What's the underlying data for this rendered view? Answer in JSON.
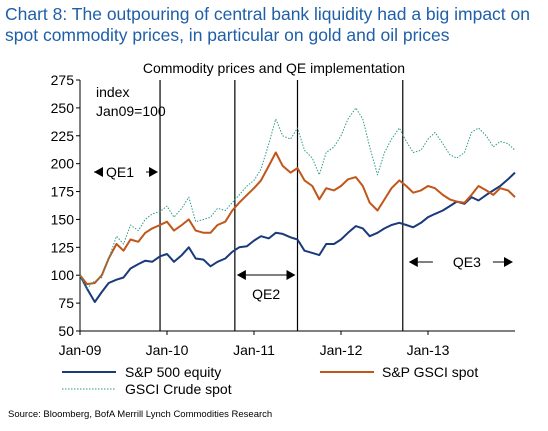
{
  "headline_line1": "Chart 8: The outpouring of central bank liquidity had a big impact on",
  "headline_line2": "spot commodity prices, in particular on gold and oil prices",
  "source": "Source: Bloomberg, BofA Merrill Lynch Commodities Research",
  "colors": {
    "headline": "#1f5fa8",
    "sp500": "#1b3a7a",
    "gsci": "#c0561a",
    "crude": "#2f9a8a"
  },
  "chart_data": {
    "type": "line",
    "title": "Commodity prices and QE implementation",
    "ylabel_line1": "index",
    "ylabel_line2": "Jan09=100",
    "ylim": [
      50,
      275
    ],
    "yticks": [
      50,
      75,
      100,
      125,
      150,
      175,
      200,
      225,
      250,
      275
    ],
    "xlim": [
      2009.0,
      2014.0
    ],
    "xticks": [
      {
        "label": "Jan-09",
        "x": 2009.0
      },
      {
        "label": "Jan-10",
        "x": 2010.0
      },
      {
        "label": "Jan-11",
        "x": 2011.0
      },
      {
        "label": "Jan-12",
        "x": 2012.0
      },
      {
        "label": "Jan-13",
        "x": 2013.0
      }
    ],
    "grid": false,
    "legend": "bottom",
    "qe_lines": [
      2009.92,
      2010.78,
      2011.5,
      2012.71
    ],
    "qe_annotations": [
      {
        "label": "QE1",
        "from": 2009.0,
        "to": 2009.92
      },
      {
        "label": "QE2",
        "from": 2010.78,
        "to": 2011.5
      },
      {
        "label": "QE3",
        "from": 2012.71,
        "to": 2014.0
      }
    ],
    "series": [
      {
        "name": "S&P 500 equity",
        "key": "sp500",
        "points": [
          [
            2009.0,
            100
          ],
          [
            2009.08,
            88
          ],
          [
            2009.17,
            76
          ],
          [
            2009.25,
            85
          ],
          [
            2009.33,
            93
          ],
          [
            2009.42,
            96
          ],
          [
            2009.5,
            98
          ],
          [
            2009.58,
            106
          ],
          [
            2009.67,
            110
          ],
          [
            2009.75,
            113
          ],
          [
            2009.83,
            112
          ],
          [
            2009.92,
            117
          ],
          [
            2010.0,
            119
          ],
          [
            2010.08,
            112
          ],
          [
            2010.17,
            118
          ],
          [
            2010.25,
            125
          ],
          [
            2010.33,
            115
          ],
          [
            2010.42,
            114
          ],
          [
            2010.5,
            108
          ],
          [
            2010.58,
            112
          ],
          [
            2010.67,
            115
          ],
          [
            2010.75,
            121
          ],
          [
            2010.83,
            125
          ],
          [
            2010.92,
            126
          ],
          [
            2011.0,
            131
          ],
          [
            2011.08,
            135
          ],
          [
            2011.17,
            133
          ],
          [
            2011.25,
            138
          ],
          [
            2011.33,
            137
          ],
          [
            2011.42,
            134
          ],
          [
            2011.5,
            132
          ],
          [
            2011.58,
            122
          ],
          [
            2011.67,
            120
          ],
          [
            2011.75,
            118
          ],
          [
            2011.83,
            128
          ],
          [
            2011.92,
            128
          ],
          [
            2012.0,
            132
          ],
          [
            2012.08,
            138
          ],
          [
            2012.17,
            144
          ],
          [
            2012.25,
            142
          ],
          [
            2012.33,
            135
          ],
          [
            2012.42,
            138
          ],
          [
            2012.5,
            142
          ],
          [
            2012.58,
            145
          ],
          [
            2012.67,
            147
          ],
          [
            2012.75,
            145
          ],
          [
            2012.83,
            143
          ],
          [
            2012.92,
            147
          ],
          [
            2013.0,
            152
          ],
          [
            2013.08,
            155
          ],
          [
            2013.17,
            158
          ],
          [
            2013.25,
            162
          ],
          [
            2013.33,
            166
          ],
          [
            2013.42,
            164
          ],
          [
            2013.5,
            170
          ],
          [
            2013.58,
            167
          ],
          [
            2013.67,
            172
          ],
          [
            2013.75,
            176
          ],
          [
            2013.83,
            180
          ],
          [
            2013.92,
            186
          ],
          [
            2014.0,
            192
          ]
        ]
      },
      {
        "name": "S&P GSCI spot",
        "key": "gsci",
        "points": [
          [
            2009.0,
            100
          ],
          [
            2009.08,
            92
          ],
          [
            2009.17,
            93
          ],
          [
            2009.25,
            100
          ],
          [
            2009.33,
            115
          ],
          [
            2009.42,
            128
          ],
          [
            2009.5,
            122
          ],
          [
            2009.58,
            132
          ],
          [
            2009.67,
            130
          ],
          [
            2009.75,
            138
          ],
          [
            2009.83,
            142
          ],
          [
            2009.92,
            145
          ],
          [
            2010.0,
            148
          ],
          [
            2010.08,
            140
          ],
          [
            2010.17,
            145
          ],
          [
            2010.25,
            150
          ],
          [
            2010.33,
            140
          ],
          [
            2010.42,
            138
          ],
          [
            2010.5,
            138
          ],
          [
            2010.58,
            145
          ],
          [
            2010.67,
            148
          ],
          [
            2010.75,
            158
          ],
          [
            2010.83,
            165
          ],
          [
            2010.92,
            172
          ],
          [
            2011.0,
            178
          ],
          [
            2011.08,
            185
          ],
          [
            2011.17,
            198
          ],
          [
            2011.25,
            210
          ],
          [
            2011.33,
            198
          ],
          [
            2011.42,
            192
          ],
          [
            2011.5,
            196
          ],
          [
            2011.58,
            185
          ],
          [
            2011.67,
            180
          ],
          [
            2011.75,
            168
          ],
          [
            2011.83,
            178
          ],
          [
            2011.92,
            176
          ],
          [
            2012.0,
            180
          ],
          [
            2012.08,
            186
          ],
          [
            2012.17,
            188
          ],
          [
            2012.25,
            180
          ],
          [
            2012.33,
            165
          ],
          [
            2012.42,
            158
          ],
          [
            2012.5,
            168
          ],
          [
            2012.58,
            178
          ],
          [
            2012.67,
            185
          ],
          [
            2012.75,
            180
          ],
          [
            2012.83,
            174
          ],
          [
            2012.92,
            176
          ],
          [
            2013.0,
            180
          ],
          [
            2013.08,
            178
          ],
          [
            2013.17,
            172
          ],
          [
            2013.25,
            168
          ],
          [
            2013.33,
            166
          ],
          [
            2013.42,
            165
          ],
          [
            2013.5,
            172
          ],
          [
            2013.58,
            180
          ],
          [
            2013.67,
            176
          ],
          [
            2013.75,
            172
          ],
          [
            2013.83,
            178
          ],
          [
            2013.92,
            176
          ],
          [
            2014.0,
            170
          ]
        ]
      },
      {
        "name": "GSCI Crude spot",
        "key": "crude",
        "points": [
          [
            2009.0,
            100
          ],
          [
            2009.08,
            88
          ],
          [
            2009.17,
            95
          ],
          [
            2009.25,
            98
          ],
          [
            2009.33,
            115
          ],
          [
            2009.42,
            135
          ],
          [
            2009.5,
            128
          ],
          [
            2009.58,
            145
          ],
          [
            2009.67,
            140
          ],
          [
            2009.75,
            150
          ],
          [
            2009.83,
            155
          ],
          [
            2009.92,
            157
          ],
          [
            2010.0,
            162
          ],
          [
            2010.08,
            152
          ],
          [
            2010.17,
            160
          ],
          [
            2010.25,
            170
          ],
          [
            2010.33,
            148
          ],
          [
            2010.42,
            150
          ],
          [
            2010.5,
            152
          ],
          [
            2010.58,
            160
          ],
          [
            2010.67,
            158
          ],
          [
            2010.75,
            165
          ],
          [
            2010.83,
            172
          ],
          [
            2010.92,
            180
          ],
          [
            2011.0,
            185
          ],
          [
            2011.08,
            195
          ],
          [
            2011.17,
            218
          ],
          [
            2011.25,
            240
          ],
          [
            2011.33,
            225
          ],
          [
            2011.42,
            222
          ],
          [
            2011.5,
            232
          ],
          [
            2011.58,
            212
          ],
          [
            2011.67,
            205
          ],
          [
            2011.75,
            190
          ],
          [
            2011.83,
            210
          ],
          [
            2011.92,
            215
          ],
          [
            2012.0,
            225
          ],
          [
            2012.08,
            240
          ],
          [
            2012.17,
            250
          ],
          [
            2012.25,
            240
          ],
          [
            2012.33,
            215
          ],
          [
            2012.42,
            190
          ],
          [
            2012.5,
            210
          ],
          [
            2012.58,
            222
          ],
          [
            2012.67,
            232
          ],
          [
            2012.75,
            220
          ],
          [
            2012.83,
            210
          ],
          [
            2012.92,
            212
          ],
          [
            2013.0,
            222
          ],
          [
            2013.08,
            228
          ],
          [
            2013.17,
            218
          ],
          [
            2013.25,
            208
          ],
          [
            2013.33,
            205
          ],
          [
            2013.42,
            210
          ],
          [
            2013.5,
            228
          ],
          [
            2013.58,
            232
          ],
          [
            2013.67,
            225
          ],
          [
            2013.75,
            215
          ],
          [
            2013.83,
            220
          ],
          [
            2013.92,
            218
          ],
          [
            2014.0,
            212
          ]
        ]
      }
    ]
  }
}
